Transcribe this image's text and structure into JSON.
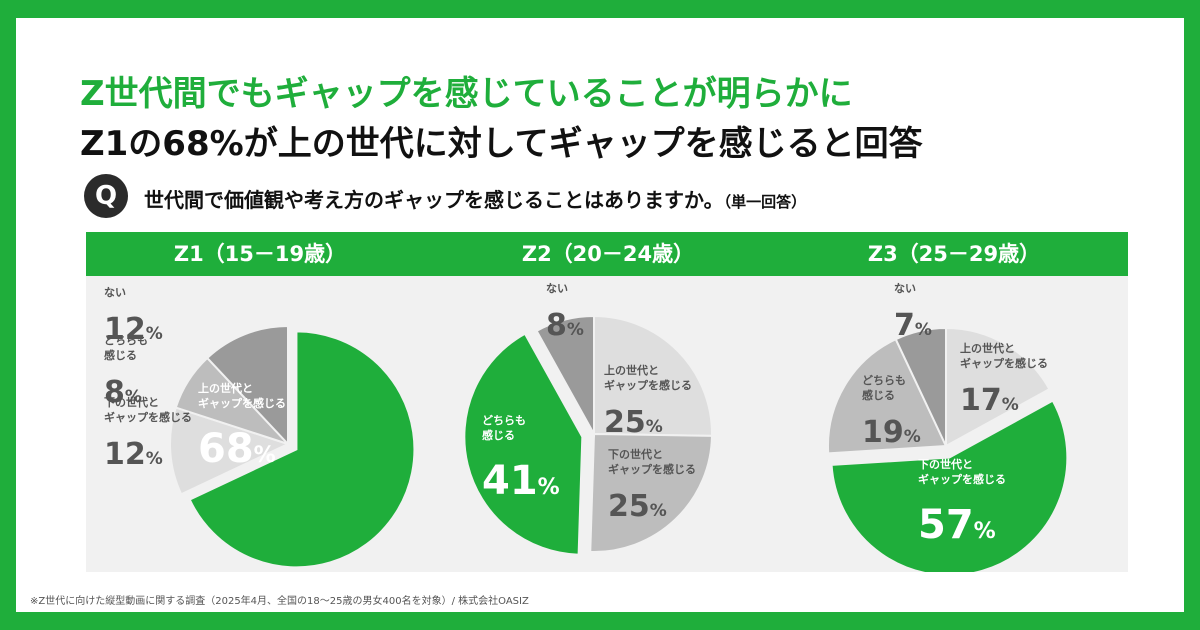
{
  "headline_green": "Z世代間でもギャップを感じていることが明らかに",
  "headline_black": "Z1の68%が上の世代に対してギャップを感じると回答",
  "q_label": "Q",
  "question": "世代間で価値観や考え方のギャップを感じることはありますか。",
  "question_note": "（単一回答）",
  "footnote": "※Z世代に向けた縦型動画に関する調査（2025年4月、全国の18～25歳の男女400名を対象）/ 株式会社OASIZ",
  "colors": {
    "background": "#1fae3b",
    "accent_green": "#1fae3b",
    "panel_bg": "#f1f1f1"
  },
  "chart_data": [
    {
      "type": "pie",
      "title": "Z1（15－19歳）",
      "slices": [
        {
          "label": "上の世代と\nギャップを感じる",
          "value": 68,
          "color": "#1fae3b"
        },
        {
          "label": "下の世代と\nギャップを感じる",
          "value": 12,
          "color": "#dedede"
        },
        {
          "label": "どちらも\n感じる",
          "value": 8,
          "color": "#bdbdbd"
        },
        {
          "label": "ない",
          "value": 12,
          "color": "#9a9a9a"
        }
      ],
      "highlight": "上の世代と\nギャップを感じる"
    },
    {
      "type": "pie",
      "title": "Z2（20－24歳）",
      "slices": [
        {
          "label": "上の世代と\nギャップを感じる",
          "value": 25,
          "color": "#dedede"
        },
        {
          "label": "下の世代と\nギャップを感じる",
          "value": 25,
          "color": "#bdbdbd"
        },
        {
          "label": "どちらも\n感じる",
          "value": 41,
          "color": "#1fae3b"
        },
        {
          "label": "ない",
          "value": 8,
          "color": "#9a9a9a"
        }
      ],
      "highlight": "どちらも\n感じる"
    },
    {
      "type": "pie",
      "title": "Z3（25－29歳）",
      "slices": [
        {
          "label": "上の世代と\nギャップを感じる",
          "value": 17,
          "color": "#dedede"
        },
        {
          "label": "下の世代と\nギャップを感じる",
          "value": 57,
          "color": "#1fae3b"
        },
        {
          "label": "どちらも\n感じる",
          "value": 19,
          "color": "#bdbdbd"
        },
        {
          "label": "ない",
          "value": 7,
          "color": "#9a9a9a"
        }
      ],
      "highlight": "下の世代と\nギャップを感じる"
    }
  ]
}
